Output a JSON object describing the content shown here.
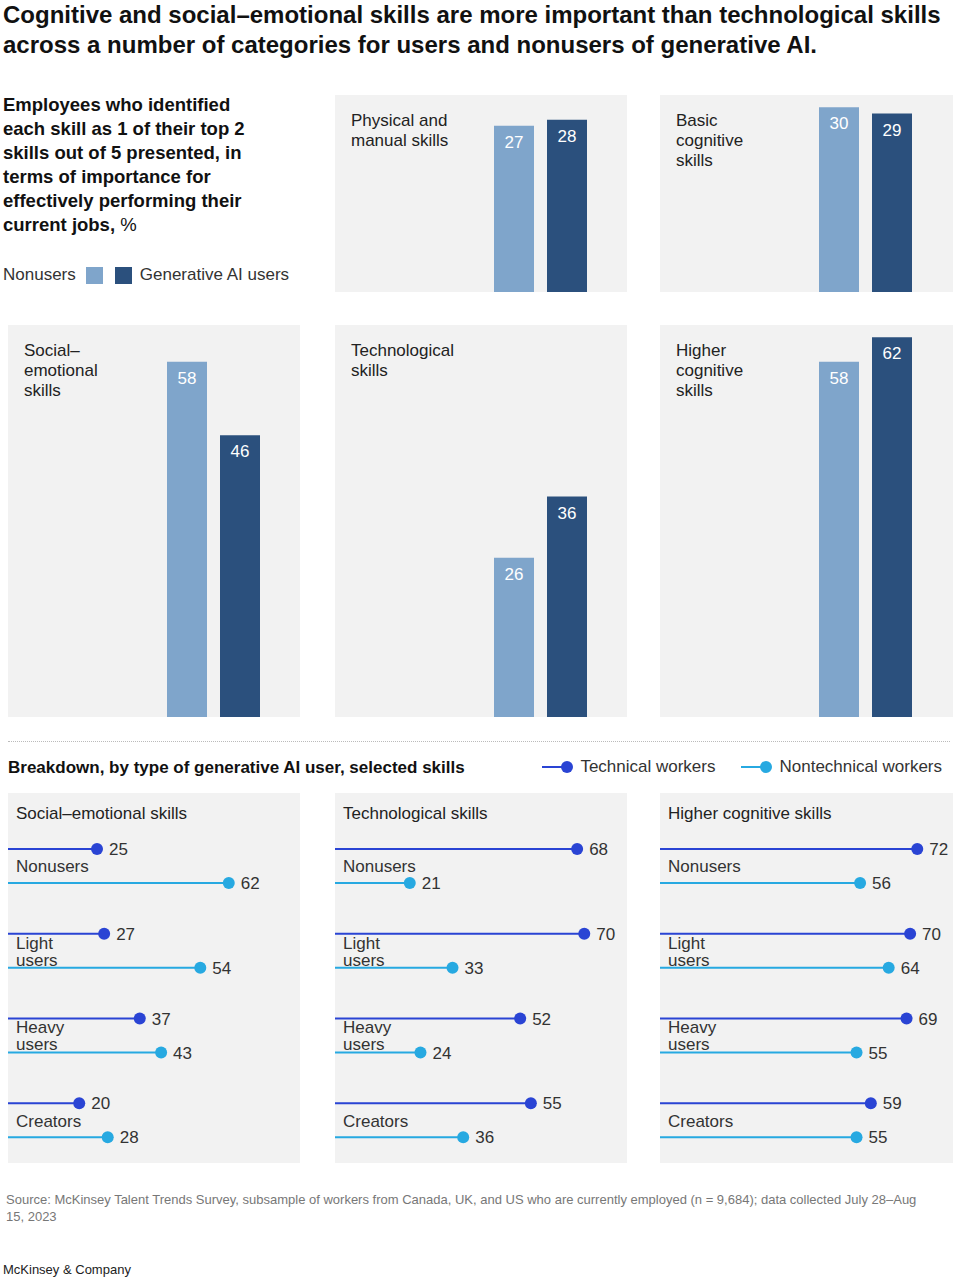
{
  "title": "Cognitive and social–emotional skills are more important than technological skills across a number of categories for users and nonusers of generative AI.",
  "subtitle": "Employees who identified each skill as 1 of their top 2 skills out of 5 presented, in terms of importance for effectively performing their current jobs, %",
  "breakdown_title": "Breakdown, by type of generative AI user, selected skills",
  "source": "Source: McKinsey Talent Trends Survey, subsample of workers from Canada, UK, and US who are currently employed (n = 9,684); data collected July 28–Aug 15, 2023",
  "credit": "McKinsey & Company",
  "chart_data": [
    {
      "type": "bar",
      "title": "Physical and manual skills",
      "categories": [
        null
      ],
      "series": [
        {
          "name": "Nonusers",
          "color": "#7fa5cb",
          "values": [
            27
          ]
        },
        {
          "name": "Generative AI users",
          "color": "#2b507d",
          "values": [
            28
          ]
        }
      ],
      "ylim": [
        0,
        32
      ],
      "data_labels": true,
      "tick_labels": false,
      "legend": "top left"
    },
    {
      "type": "bar",
      "title": "Basic cognitive skills",
      "categories": [
        null
      ],
      "series": [
        {
          "name": "Nonusers",
          "color": "#7fa5cb",
          "values": [
            30
          ]
        },
        {
          "name": "Generative AI users",
          "color": "#2b507d",
          "values": [
            29
          ]
        }
      ],
      "ylim": [
        0,
        32
      ],
      "data_labels": true,
      "tick_labels": false
    },
    {
      "type": "bar",
      "title": "Social–emotional skills",
      "categories": [
        null
      ],
      "series": [
        {
          "name": "Nonusers",
          "color": "#7fa5cb",
          "values": [
            58
          ]
        },
        {
          "name": "Generative AI users",
          "color": "#2b507d",
          "values": [
            46
          ]
        }
      ],
      "ylim": [
        0,
        64
      ],
      "data_labels": true,
      "tick_labels": false
    },
    {
      "type": "bar",
      "title": "Technological skills",
      "categories": [
        null
      ],
      "series": [
        {
          "name": "Nonusers",
          "color": "#7fa5cb",
          "values": [
            26
          ]
        },
        {
          "name": "Generative AI users",
          "color": "#2b507d",
          "values": [
            36
          ]
        }
      ],
      "ylim": [
        0,
        64
      ],
      "data_labels": true,
      "tick_labels": false
    },
    {
      "type": "bar",
      "title": "Higher cognitive skills",
      "categories": [
        null
      ],
      "series": [
        {
          "name": "Nonusers",
          "color": "#7fa5cb",
          "values": [
            58
          ]
        },
        {
          "name": "Generative AI users",
          "color": "#2b507d",
          "values": [
            62
          ]
        }
      ],
      "ylim": [
        0,
        64
      ],
      "data_labels": true,
      "tick_labels": false
    },
    {
      "type": "lollipop",
      "orientation": "horizontal",
      "title": "Social–emotional skills",
      "categories": [
        "Nonusers",
        "Light users",
        "Heavy users",
        "Creators"
      ],
      "series": [
        {
          "name": "Technical workers",
          "color": "#2a44d4",
          "values": [
            25,
            27,
            37,
            20
          ]
        },
        {
          "name": "Nontechnical workers",
          "color": "#27a9e1",
          "values": [
            62,
            54,
            43,
            28
          ]
        }
      ],
      "xlim": [
        0,
        82
      ],
      "marker": "circle",
      "data_labels": true,
      "tick_labels": "y",
      "legend": "top right"
    },
    {
      "type": "lollipop",
      "orientation": "horizontal",
      "title": "Technological skills",
      "categories": [
        "Nonusers",
        "Light users",
        "Heavy users",
        "Creators"
      ],
      "series": [
        {
          "name": "Technical workers",
          "color": "#2a44d4",
          "values": [
            68,
            70,
            52,
            55
          ]
        },
        {
          "name": "Nontechnical workers",
          "color": "#27a9e1",
          "values": [
            21,
            33,
            24,
            36
          ]
        }
      ],
      "xlim": [
        0,
        82
      ],
      "marker": "circle",
      "data_labels": true,
      "tick_labels": "y"
    },
    {
      "type": "lollipop",
      "orientation": "horizontal",
      "title": "Higher cognitive skills",
      "categories": [
        "Nonusers",
        "Light users",
        "Heavy users",
        "Creators"
      ],
      "series": [
        {
          "name": "Technical workers",
          "color": "#2a44d4",
          "values": [
            72,
            70,
            69,
            59
          ]
        },
        {
          "name": "Nontechnical workers",
          "color": "#27a9e1",
          "values": [
            56,
            64,
            55,
            55
          ]
        }
      ],
      "xlim": [
        0,
        82
      ],
      "marker": "circle",
      "data_labels": true,
      "tick_labels": "y"
    }
  ]
}
